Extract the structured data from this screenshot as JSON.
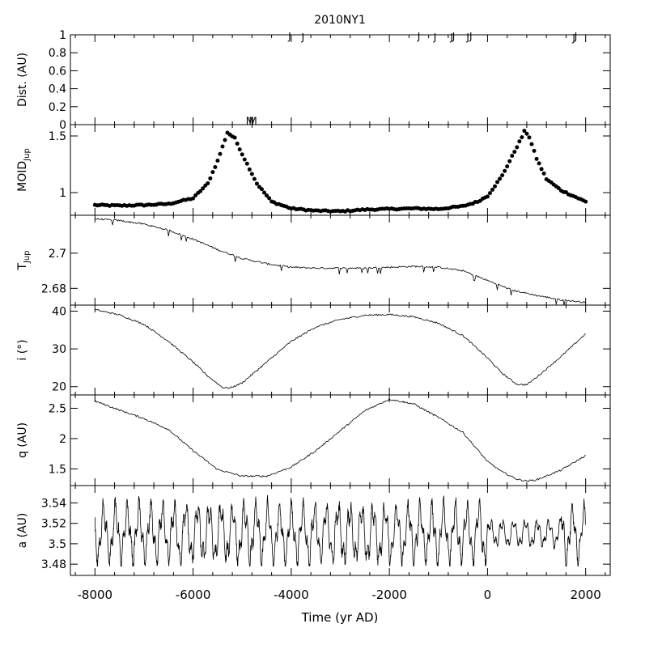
{
  "title": "2010NY1",
  "xlabel": "Time (yr AD)",
  "x_ticks": [
    -8000,
    -6000,
    -4000,
    -2000,
    0,
    2000
  ],
  "x_tick_labels": [
    "-8000",
    "-6000",
    "-4000",
    "-2000",
    "0",
    "2000"
  ],
  "colors": {
    "ink": "#000000",
    "background": "#ffffff"
  },
  "chart_data": [
    {
      "type": "scatter",
      "panel": "Distance",
      "ylabel": "Dist. (AU)",
      "ylim": [
        0,
        1
      ],
      "yticks": [
        0,
        0.2,
        0.4,
        0.6,
        0.8,
        1
      ],
      "ytick_labels": [
        "0",
        "0.2",
        "0.4",
        "0.6",
        "0.8",
        "1"
      ],
      "encounters": [
        {
          "body": "J",
          "x": -4030,
          "y": 1.0
        },
        {
          "body": "J",
          "x": -3760,
          "y": 0.99
        },
        {
          "body": "J",
          "x": -1400,
          "y": 1.0
        },
        {
          "body": "J",
          "x": -1070,
          "y": 0.99
        },
        {
          "body": "J",
          "x": -730,
          "y": 0.99
        },
        {
          "body": "J",
          "x": -690,
          "y": 1.0
        },
        {
          "body": "J",
          "x": -400,
          "y": 0.99
        },
        {
          "body": "J",
          "x": -340,
          "y": 1.0
        },
        {
          "body": "J",
          "x": 1760,
          "y": 0.98
        },
        {
          "body": "J",
          "x": 1800,
          "y": 1.0
        },
        {
          "body": "M",
          "x": -4840,
          "y": 0.06
        },
        {
          "body": "M",
          "x": -4780,
          "y": 0.06
        }
      ]
    },
    {
      "type": "scatter",
      "panel": "MOID",
      "ylabel": "MOID",
      "ylabel_sub": "Jup",
      "ylim": [
        0.8,
        1.6
      ],
      "yticks": [
        1,
        1.5
      ],
      "ytick_labels": [
        "1",
        "1.5"
      ],
      "keypoints": {
        "x": [
          -8000,
          -7500,
          -7000,
          -6500,
          -6000,
          -5700,
          -5500,
          -5300,
          -5150,
          -5000,
          -4700,
          -4400,
          -4000,
          -3500,
          -3000,
          -2500,
          -2000,
          -1500,
          -1000,
          -500,
          -200,
          0,
          300,
          500,
          700,
          760,
          850,
          1000,
          1200,
          1500,
          1800,
          2000
        ],
        "y": [
          0.89,
          0.885,
          0.89,
          0.9,
          0.95,
          1.08,
          1.28,
          1.53,
          1.48,
          1.34,
          1.08,
          0.92,
          0.86,
          0.84,
          0.835,
          0.85,
          0.855,
          0.86,
          0.855,
          0.88,
          0.92,
          0.97,
          1.15,
          1.32,
          1.49,
          1.55,
          1.49,
          1.3,
          1.12,
          1.02,
          0.96,
          0.92
        ]
      }
    },
    {
      "type": "line",
      "panel": "Tisserand",
      "ylabel": "T",
      "ylabel_sub": "Jup",
      "ylim": [
        2.6705,
        2.7215
      ],
      "yticks": [
        2.68,
        2.7
      ],
      "ytick_labels": [
        "2.68",
        "2.7"
      ],
      "keypoints": {
        "x": [
          -8000,
          -7500,
          -7000,
          -6500,
          -6000,
          -5500,
          -5000,
          -4500,
          -4000,
          -3500,
          -3000,
          -2500,
          -2000,
          -1500,
          -1000,
          -500,
          0,
          500,
          1000,
          1500,
          2000
        ],
        "y": [
          2.7195,
          2.7185,
          2.7165,
          2.713,
          2.708,
          2.702,
          2.697,
          2.694,
          2.692,
          2.6915,
          2.6915,
          2.6915,
          2.692,
          2.6925,
          2.692,
          2.69,
          2.6845,
          2.679,
          2.676,
          2.6735,
          2.672
        ]
      }
    },
    {
      "type": "line",
      "panel": "Inclination",
      "ylabel": "i (°)",
      "ylim": [
        17.8,
        41.6
      ],
      "yticks": [
        20,
        30,
        40
      ],
      "ytick_labels": [
        "20",
        "30",
        "40"
      ],
      "keypoints": {
        "x": [
          -8000,
          -7500,
          -7000,
          -6500,
          -6000,
          -5700,
          -5400,
          -5250,
          -5000,
          -4500,
          -4000,
          -3500,
          -3000,
          -2500,
          -2000,
          -1500,
          -1000,
          -500,
          0,
          300,
          600,
          800,
          1000,
          1500,
          2000
        ],
        "y": [
          40.4,
          39.0,
          36.5,
          32.0,
          26.5,
          22.8,
          19.8,
          19.6,
          21.0,
          26.5,
          32.0,
          35.8,
          37.8,
          38.9,
          39.1,
          38.5,
          36.8,
          33.5,
          27.6,
          23.5,
          20.6,
          20.5,
          22.5,
          28.0,
          34.0
        ]
      }
    },
    {
      "type": "line",
      "panel": "Perihelion",
      "ylabel": "q (AU)",
      "ylim": [
        1.225,
        2.72
      ],
      "yticks": [
        1.5,
        2,
        2.5
      ],
      "ytick_labels": [
        "1.5",
        "2",
        "2.5"
      ],
      "keypoints": {
        "x": [
          -8000,
          -7500,
          -7000,
          -6500,
          -6000,
          -5500,
          -5000,
          -4500,
          -4000,
          -3500,
          -3000,
          -2500,
          -2000,
          -1500,
          -1000,
          -500,
          0,
          300,
          600,
          800,
          1000,
          1500,
          2000
        ],
        "y": [
          2.62,
          2.47,
          2.33,
          2.15,
          1.8,
          1.49,
          1.38,
          1.38,
          1.53,
          1.8,
          2.13,
          2.46,
          2.65,
          2.57,
          2.35,
          2.1,
          1.62,
          1.45,
          1.33,
          1.3,
          1.32,
          1.48,
          1.72
        ]
      }
    },
    {
      "type": "line",
      "panel": "Semi-major axis",
      "ylabel": "a (AU)",
      "xlabel": "Time (yr AD)",
      "ylim": [
        3.469,
        3.557
      ],
      "yticks": [
        3.48,
        3.5,
        3.52,
        3.54
      ],
      "ytick_labels": [
        "3.48",
        "3.5",
        "3.52",
        "3.54"
      ],
      "mean": 3.51,
      "oscillation_range": [
        3.478,
        3.548
      ]
    }
  ]
}
